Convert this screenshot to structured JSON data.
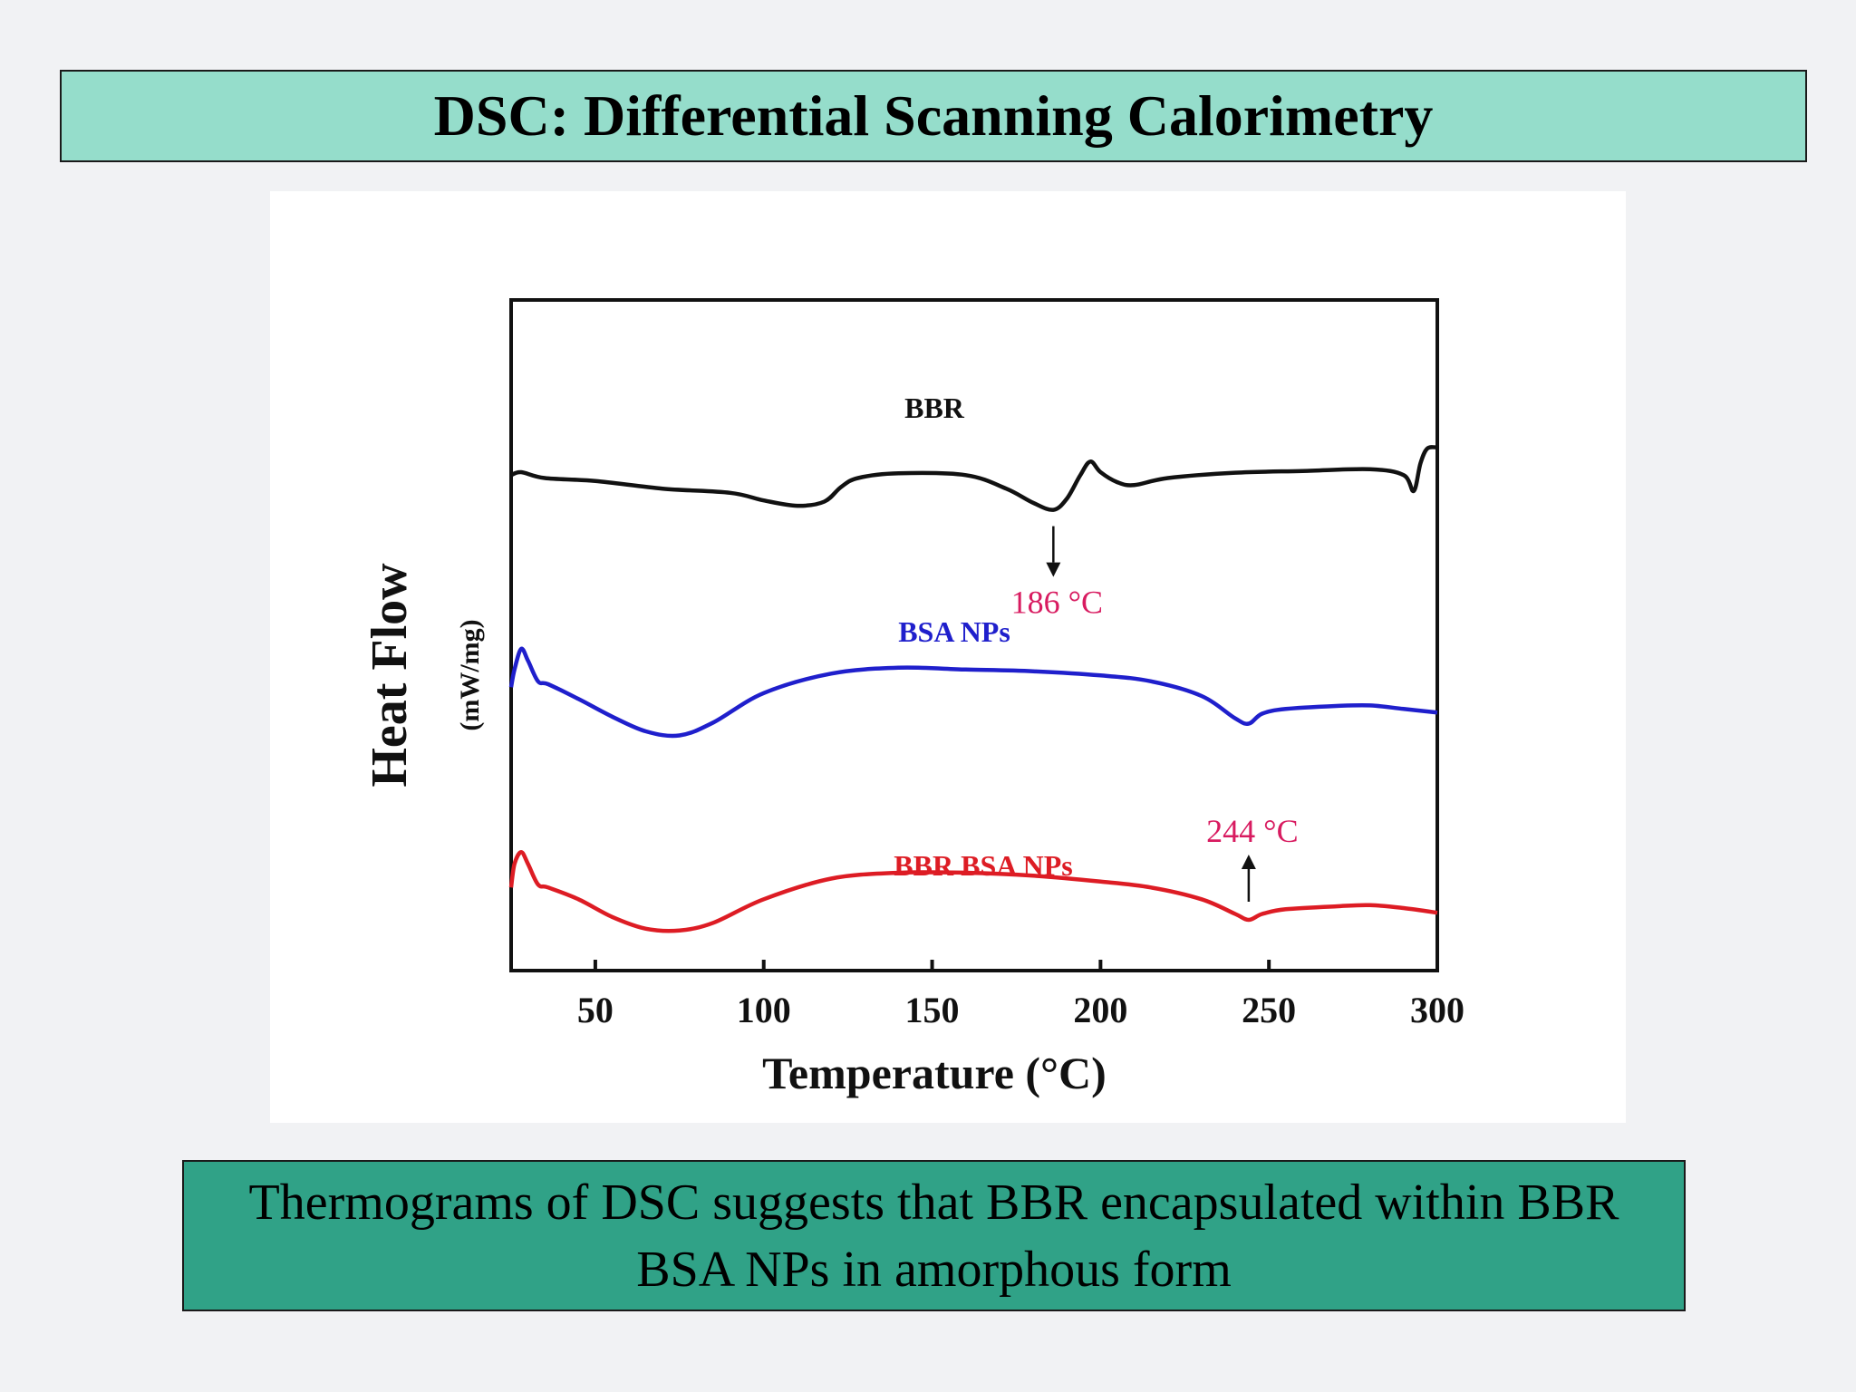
{
  "slide": {
    "title": "DSC: Differential Scanning Calorimetry",
    "caption": "Thermograms of DSC suggests that BBR encapsulated within BBR BSA NPs in amorphous form"
  },
  "colors": {
    "title_bg": "#95ddcb",
    "caption_bg": "#30a287",
    "bbr": "#111111",
    "bsa_nps": "#1f1fcc",
    "bbr_bsa_nps": "#dd1c24",
    "annotation": "#d81b60"
  },
  "chart_data": {
    "type": "line",
    "title": "",
    "xlabel": "Temperature (°C)",
    "ylabel": "Heat Flow",
    "ylabel_unit": "(mW/mg)",
    "xlim": [
      25,
      300
    ],
    "ylim": [
      0,
      100
    ],
    "xticks": [
      50,
      100,
      150,
      200,
      250,
      300
    ],
    "xtick_labels": [
      "50",
      "100",
      "150",
      "200",
      "250",
      "300"
    ],
    "grid": false,
    "series": [
      {
        "name": "BBR",
        "label": "BBR",
        "color": "#111111",
        "x": [
          25,
          28,
          35,
          50,
          70,
          90,
          100,
          110,
          118,
          123,
          128,
          140,
          160,
          172,
          180,
          186,
          190,
          194,
          197,
          200,
          205,
          210,
          220,
          240,
          260,
          280,
          290,
          293,
          295,
          297,
          300
        ],
        "y": [
          79.5,
          80.0,
          79.0,
          78.5,
          77.2,
          76.5,
          75.2,
          74.3,
          75.0,
          77.5,
          79.0,
          79.8,
          79.5,
          77.2,
          74.8,
          73.6,
          75.5,
          79.5,
          81.8,
          80.0,
          78.3,
          77.8,
          79.0,
          79.9,
          80.2,
          80.5,
          79.5,
          76.8,
          81.5,
          84.0,
          84.2
        ]
      },
      {
        "name": "BSA NPs",
        "label": "BSA NPs",
        "color": "#1f1fcc",
        "x": [
          25,
          26,
          28,
          30,
          33,
          36,
          45,
          55,
          65,
          75,
          85,
          100,
          120,
          140,
          160,
          180,
          200,
          215,
          230,
          240,
          244,
          248,
          255,
          270,
          280,
          290,
          300
        ],
        "y": [
          43.5,
          46.5,
          50.0,
          48.0,
          44.5,
          44.0,
          41.5,
          38.5,
          36.0,
          35.3,
          37.5,
          42.5,
          45.8,
          46.8,
          46.5,
          46.2,
          45.5,
          44.5,
          42.0,
          38.2,
          37.3,
          39.0,
          39.8,
          40.3,
          40.4,
          39.8,
          39.2
        ]
      },
      {
        "name": "BBR BSA NPs",
        "label": "BBR BSA NPs",
        "color": "#dd1c24",
        "x": [
          25,
          26,
          28,
          30,
          33,
          36,
          45,
          55,
          65,
          75,
          85,
          100,
          120,
          140,
          160,
          180,
          200,
          215,
          230,
          240,
          244,
          248,
          255,
          270,
          280,
          290,
          300
        ],
        "y": [
          9.5,
          13.5,
          15.5,
          13.5,
          10.0,
          9.5,
          7.5,
          4.5,
          2.5,
          2.2,
          3.5,
          7.5,
          11.0,
          12.0,
          12.0,
          11.5,
          10.5,
          9.5,
          7.5,
          5.0,
          4.0,
          5.0,
          5.8,
          6.3,
          6.5,
          6.0,
          5.2
        ]
      }
    ],
    "annotations": [
      {
        "text": "186 °C",
        "x": 186,
        "target_series": "BBR",
        "arrow": "down"
      },
      {
        "text": "244 °C",
        "x": 244,
        "target_series": "BBR BSA NPs",
        "arrow": "up"
      }
    ]
  }
}
